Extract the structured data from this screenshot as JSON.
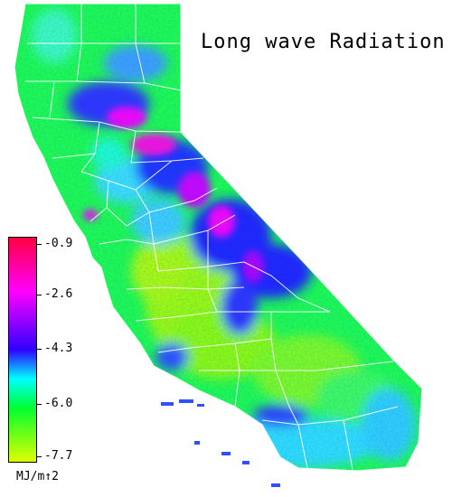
{
  "title": "Long wave Radiation",
  "legend": {
    "unit": "MJ/m↑2",
    "ticks": [
      "-0.9",
      "-2.6",
      "-4.3",
      "-6.0",
      "-7.7"
    ],
    "range": [
      -7.7,
      -0.9
    ],
    "colors": [
      "#ff0040",
      "#ff00ff",
      "#3000ff",
      "#00ffff",
      "#00ff30",
      "#dfff00"
    ]
  },
  "map": {
    "region": "California",
    "boundary_color": "#ffffff"
  }
}
